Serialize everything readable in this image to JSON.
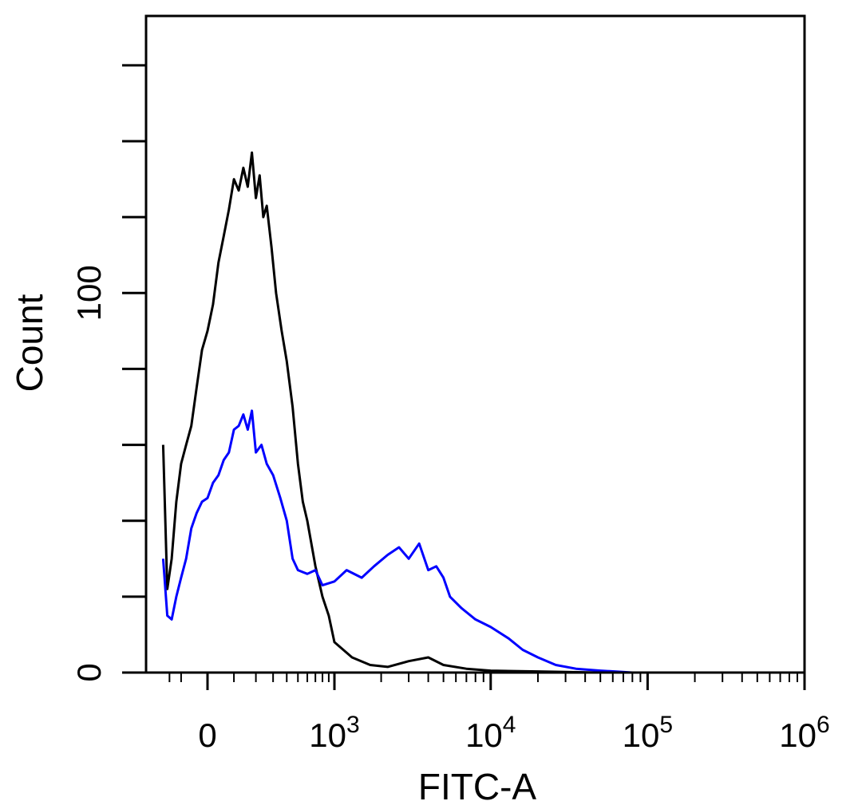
{
  "chart_data": {
    "type": "line",
    "title": "",
    "xlabel": "FITC-A",
    "ylabel": "Count",
    "x_scale": "biexponential",
    "x_ticks": [
      {
        "value": 0,
        "base": "0",
        "exp": ""
      },
      {
        "value": 1000,
        "base": "10",
        "exp": "3"
      },
      {
        "value": 10000,
        "base": "10",
        "exp": "4"
      },
      {
        "value": 100000,
        "base": "10",
        "exp": "5"
      },
      {
        "value": 1000000,
        "base": "10",
        "exp": "6"
      }
    ],
    "y_ticks": [
      {
        "value": 0,
        "label": "0"
      },
      {
        "value": 100,
        "label": "100"
      }
    ],
    "ylim": [
      0,
      173
    ],
    "grid": false,
    "series": [
      {
        "color": "#000000",
        "points": [
          [
            -180,
            60
          ],
          [
            -160,
            22
          ],
          [
            -140,
            30
          ],
          [
            -120,
            45
          ],
          [
            -100,
            55
          ],
          [
            -80,
            60
          ],
          [
            -60,
            65
          ],
          [
            -40,
            75
          ],
          [
            -20,
            85
          ],
          [
            0,
            90
          ],
          [
            20,
            97
          ],
          [
            40,
            108
          ],
          [
            60,
            115
          ],
          [
            80,
            122
          ],
          [
            100,
            130
          ],
          [
            120,
            127
          ],
          [
            140,
            133
          ],
          [
            160,
            128
          ],
          [
            180,
            137
          ],
          [
            200,
            125
          ],
          [
            220,
            131
          ],
          [
            240,
            120
          ],
          [
            260,
            123
          ],
          [
            290,
            112
          ],
          [
            320,
            100
          ],
          [
            360,
            90
          ],
          [
            400,
            82
          ],
          [
            450,
            70
          ],
          [
            500,
            55
          ],
          [
            550,
            45
          ],
          [
            600,
            40
          ],
          [
            700,
            28
          ],
          [
            800,
            20
          ],
          [
            900,
            15
          ],
          [
            1000,
            8
          ],
          [
            1300,
            4
          ],
          [
            1700,
            2
          ],
          [
            2200,
            1.5
          ],
          [
            3000,
            3
          ],
          [
            4000,
            4
          ],
          [
            5000,
            2
          ],
          [
            7000,
            1
          ],
          [
            10000,
            0.5
          ],
          [
            20000,
            0.3
          ],
          [
            50000,
            0
          ],
          [
            1000000,
            0
          ]
        ]
      },
      {
        "color": "#0000ff",
        "points": [
          [
            -180,
            30
          ],
          [
            -160,
            15
          ],
          [
            -140,
            14
          ],
          [
            -120,
            20
          ],
          [
            -100,
            25
          ],
          [
            -80,
            30
          ],
          [
            -60,
            38
          ],
          [
            -40,
            42
          ],
          [
            -20,
            45
          ],
          [
            0,
            46
          ],
          [
            20,
            50
          ],
          [
            40,
            52
          ],
          [
            60,
            56
          ],
          [
            80,
            58
          ],
          [
            100,
            64
          ],
          [
            120,
            65
          ],
          [
            140,
            68
          ],
          [
            160,
            64
          ],
          [
            180,
            69
          ],
          [
            200,
            58
          ],
          [
            230,
            60
          ],
          [
            260,
            55
          ],
          [
            300,
            52
          ],
          [
            350,
            46
          ],
          [
            400,
            40
          ],
          [
            450,
            30
          ],
          [
            500,
            27
          ],
          [
            600,
            26
          ],
          [
            700,
            27
          ],
          [
            800,
            23
          ],
          [
            1000,
            24
          ],
          [
            1200,
            27
          ],
          [
            1500,
            25
          ],
          [
            1800,
            28
          ],
          [
            2200,
            31
          ],
          [
            2600,
            33
          ],
          [
            3000,
            30
          ],
          [
            3500,
            34
          ],
          [
            4000,
            27
          ],
          [
            4500,
            28
          ],
          [
            5000,
            25
          ],
          [
            5500,
            20
          ],
          [
            6500,
            17
          ],
          [
            8000,
            14
          ],
          [
            10000,
            12
          ],
          [
            13000,
            9
          ],
          [
            16000,
            6
          ],
          [
            20000,
            4
          ],
          [
            26000,
            2
          ],
          [
            35000,
            1
          ],
          [
            50000,
            0.5
          ],
          [
            80000,
            0
          ],
          [
            1000000,
            0
          ]
        ]
      }
    ]
  }
}
